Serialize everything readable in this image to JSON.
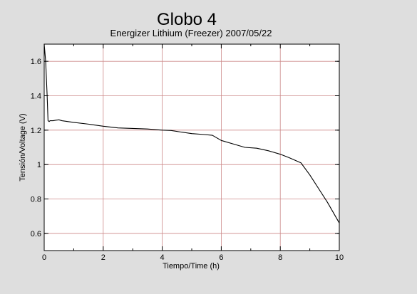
{
  "chart_data": {
    "type": "line",
    "title": "Globo 4",
    "subtitle": "Energizer Lithium (Freezer) 2007/05/22",
    "xlabel": "Tiempo/Time (h)",
    "ylabel": "Tensión/Voltage (V)",
    "xlim": [
      0,
      10
    ],
    "ylim": [
      0.5,
      1.7
    ],
    "xticks": [
      0,
      2,
      4,
      6,
      8,
      10
    ],
    "yticks": [
      0.6,
      0.8,
      1.0,
      1.2,
      1.4,
      1.6
    ],
    "xtick_labels": [
      "0",
      "2",
      "4",
      "6",
      "8",
      "10"
    ],
    "ytick_labels": [
      "0.6",
      "0.8",
      "1",
      "1.2",
      "1.4",
      "1.6"
    ],
    "grid": true,
    "colors": {
      "background": "#dedede",
      "plot_background": "#ffffff",
      "grid": "#cc8888",
      "line": "#000000"
    },
    "series": [
      {
        "x": [
          0,
          0.05,
          0.1,
          0.13,
          0.17,
          0.2,
          0.3,
          0.4,
          0.5,
          0.6,
          1,
          1.5,
          2,
          2.5,
          3,
          3.5,
          4,
          4.3,
          4.6,
          5,
          5.4,
          5.7,
          6,
          6.5,
          6.8,
          7.2,
          7.6,
          8,
          8.3,
          8.7,
          9,
          9.3,
          9.6,
          9.8,
          10
        ],
        "y": [
          1.7,
          1.6,
          1.4,
          1.255,
          1.25,
          1.255,
          1.255,
          1.258,
          1.26,
          1.255,
          1.245,
          1.235,
          1.223,
          1.213,
          1.21,
          1.207,
          1.2,
          1.198,
          1.19,
          1.18,
          1.175,
          1.17,
          1.14,
          1.115,
          1.1,
          1.095,
          1.08,
          1.06,
          1.04,
          1.01,
          0.94,
          0.86,
          0.78,
          0.72,
          0.66
        ]
      }
    ]
  }
}
